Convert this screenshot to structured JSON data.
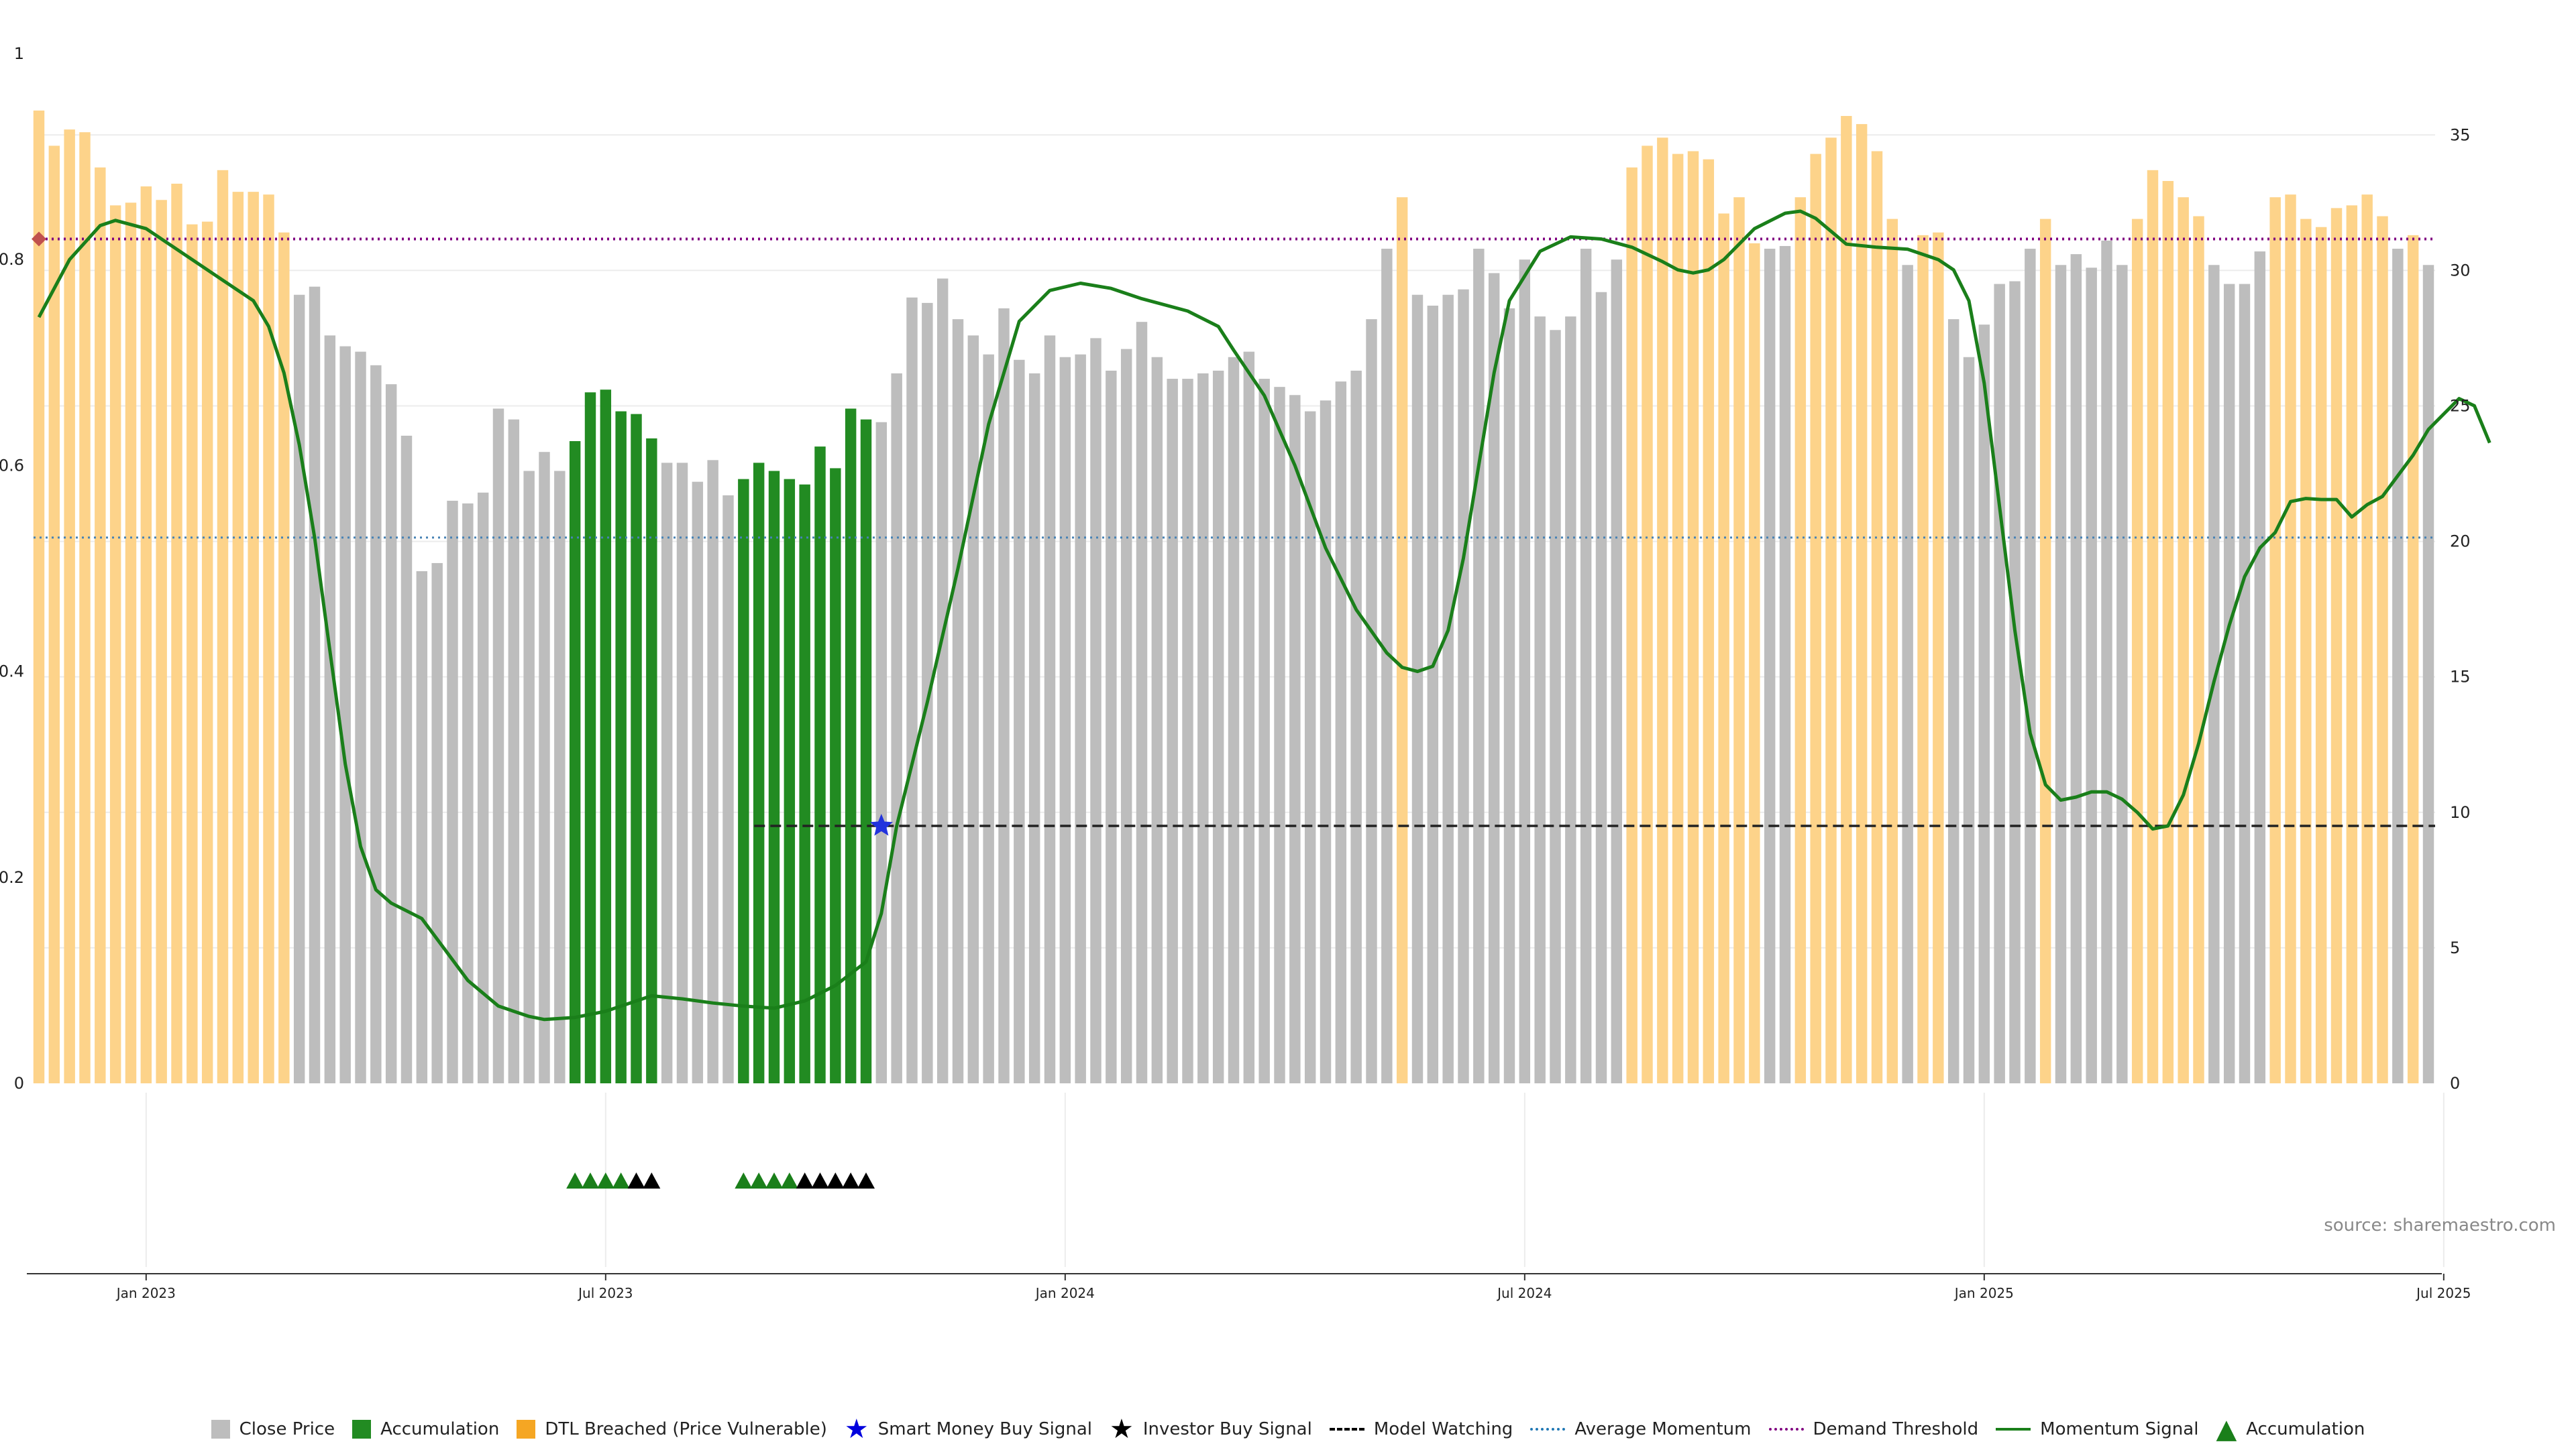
{
  "chart_data": {
    "type": "bar",
    "title": "",
    "left_axis": {
      "ylim": [
        0,
        1
      ],
      "ticks": [
        "0",
        "0.2",
        "0.4",
        "0.6",
        "0.8",
        "1"
      ]
    },
    "right_axis": {
      "ylim": [
        0,
        38
      ],
      "ticks": [
        "0",
        "5",
        "10",
        "15",
        "20",
        "25",
        "30",
        "35"
      ]
    },
    "x_ticks": [
      "Jan 2023",
      "Jul 2023",
      "Jan 2024",
      "Jul 2024",
      "Jan 2025",
      "Jul 2025"
    ],
    "demand_threshold": 0.82,
    "average_momentum": 0.53,
    "model_watching": 0.25,
    "smart_money_buy_signal": {
      "index": 55,
      "value": 0.25
    },
    "marker_start": {
      "value": 0.82
    },
    "categories_legend": {
      "g": "Close Price",
      "a": "Accumulation",
      "o": "DTL Breached (Price Vulnerable)"
    },
    "bars": [
      {
        "v": 35.9,
        "c": "o"
      },
      {
        "v": 34.6,
        "c": "o"
      },
      {
        "v": 35.2,
        "c": "o"
      },
      {
        "v": 35.1,
        "c": "o"
      },
      {
        "v": 33.8,
        "c": "o"
      },
      {
        "v": 32.4,
        "c": "o"
      },
      {
        "v": 32.5,
        "c": "o"
      },
      {
        "v": 33.1,
        "c": "o"
      },
      {
        "v": 32.6,
        "c": "o"
      },
      {
        "v": 33.2,
        "c": "o"
      },
      {
        "v": 31.7,
        "c": "o"
      },
      {
        "v": 31.8,
        "c": "o"
      },
      {
        "v": 33.7,
        "c": "o"
      },
      {
        "v": 32.9,
        "c": "o"
      },
      {
        "v": 32.9,
        "c": "o"
      },
      {
        "v": 32.8,
        "c": "o"
      },
      {
        "v": 31.4,
        "c": "o"
      },
      {
        "v": 29.1,
        "c": "g"
      },
      {
        "v": 29.4,
        "c": "g"
      },
      {
        "v": 27.6,
        "c": "g"
      },
      {
        "v": 27.2,
        "c": "g"
      },
      {
        "v": 27.0,
        "c": "g"
      },
      {
        "v": 26.5,
        "c": "g"
      },
      {
        "v": 25.8,
        "c": "g"
      },
      {
        "v": 23.9,
        "c": "g"
      },
      {
        "v": 18.9,
        "c": "g"
      },
      {
        "v": 19.2,
        "c": "g"
      },
      {
        "v": 21.5,
        "c": "g"
      },
      {
        "v": 21.4,
        "c": "g"
      },
      {
        "v": 21.8,
        "c": "g"
      },
      {
        "v": 24.9,
        "c": "g"
      },
      {
        "v": 24.5,
        "c": "g"
      },
      {
        "v": 22.6,
        "c": "g"
      },
      {
        "v": 23.3,
        "c": "g"
      },
      {
        "v": 22.6,
        "c": "g"
      },
      {
        "v": 23.7,
        "c": "a"
      },
      {
        "v": 25.5,
        "c": "a"
      },
      {
        "v": 25.6,
        "c": "a"
      },
      {
        "v": 24.8,
        "c": "a"
      },
      {
        "v": 24.7,
        "c": "a"
      },
      {
        "v": 23.8,
        "c": "a"
      },
      {
        "v": 22.9,
        "c": "g"
      },
      {
        "v": 22.9,
        "c": "g"
      },
      {
        "v": 22.2,
        "c": "g"
      },
      {
        "v": 23.0,
        "c": "g"
      },
      {
        "v": 21.7,
        "c": "g"
      },
      {
        "v": 22.3,
        "c": "a"
      },
      {
        "v": 22.9,
        "c": "a"
      },
      {
        "v": 22.6,
        "c": "a"
      },
      {
        "v": 22.3,
        "c": "a"
      },
      {
        "v": 22.1,
        "c": "a"
      },
      {
        "v": 23.5,
        "c": "a"
      },
      {
        "v": 22.7,
        "c": "a"
      },
      {
        "v": 24.9,
        "c": "a"
      },
      {
        "v": 24.5,
        "c": "a"
      },
      {
        "v": 24.4,
        "c": "g"
      },
      {
        "v": 26.2,
        "c": "g"
      },
      {
        "v": 29.0,
        "c": "g"
      },
      {
        "v": 28.8,
        "c": "g"
      },
      {
        "v": 29.7,
        "c": "g"
      },
      {
        "v": 28.2,
        "c": "g"
      },
      {
        "v": 27.6,
        "c": "g"
      },
      {
        "v": 26.9,
        "c": "g"
      },
      {
        "v": 28.6,
        "c": "g"
      },
      {
        "v": 26.7,
        "c": "g"
      },
      {
        "v": 26.2,
        "c": "g"
      },
      {
        "v": 27.6,
        "c": "g"
      },
      {
        "v": 26.8,
        "c": "g"
      },
      {
        "v": 26.9,
        "c": "g"
      },
      {
        "v": 27.5,
        "c": "g"
      },
      {
        "v": 26.3,
        "c": "g"
      },
      {
        "v": 27.1,
        "c": "g"
      },
      {
        "v": 28.1,
        "c": "g"
      },
      {
        "v": 26.8,
        "c": "g"
      },
      {
        "v": 26.0,
        "c": "g"
      },
      {
        "v": 26.0,
        "c": "g"
      },
      {
        "v": 26.2,
        "c": "g"
      },
      {
        "v": 26.3,
        "c": "g"
      },
      {
        "v": 26.8,
        "c": "g"
      },
      {
        "v": 27.0,
        "c": "g"
      },
      {
        "v": 26.0,
        "c": "g"
      },
      {
        "v": 25.7,
        "c": "g"
      },
      {
        "v": 25.4,
        "c": "g"
      },
      {
        "v": 24.8,
        "c": "g"
      },
      {
        "v": 25.2,
        "c": "g"
      },
      {
        "v": 25.9,
        "c": "g"
      },
      {
        "v": 26.3,
        "c": "g"
      },
      {
        "v": 28.2,
        "c": "g"
      },
      {
        "v": 30.8,
        "c": "g"
      },
      {
        "v": 32.7,
        "c": "o"
      },
      {
        "v": 29.1,
        "c": "g"
      },
      {
        "v": 28.7,
        "c": "g"
      },
      {
        "v": 29.1,
        "c": "g"
      },
      {
        "v": 29.3,
        "c": "g"
      },
      {
        "v": 30.8,
        "c": "g"
      },
      {
        "v": 29.9,
        "c": "g"
      },
      {
        "v": 28.6,
        "c": "g"
      },
      {
        "v": 30.4,
        "c": "g"
      },
      {
        "v": 28.3,
        "c": "g"
      },
      {
        "v": 27.8,
        "c": "g"
      },
      {
        "v": 28.3,
        "c": "g"
      },
      {
        "v": 30.8,
        "c": "g"
      },
      {
        "v": 29.2,
        "c": "g"
      },
      {
        "v": 30.4,
        "c": "g"
      },
      {
        "v": 33.8,
        "c": "o"
      },
      {
        "v": 34.6,
        "c": "o"
      },
      {
        "v": 34.9,
        "c": "o"
      },
      {
        "v": 34.3,
        "c": "o"
      },
      {
        "v": 34.4,
        "c": "o"
      },
      {
        "v": 34.1,
        "c": "o"
      },
      {
        "v": 32.1,
        "c": "o"
      },
      {
        "v": 32.7,
        "c": "o"
      },
      {
        "v": 31.0,
        "c": "o"
      },
      {
        "v": 30.8,
        "c": "g"
      },
      {
        "v": 30.9,
        "c": "g"
      },
      {
        "v": 32.7,
        "c": "o"
      },
      {
        "v": 34.3,
        "c": "o"
      },
      {
        "v": 34.9,
        "c": "o"
      },
      {
        "v": 35.7,
        "c": "o"
      },
      {
        "v": 35.4,
        "c": "o"
      },
      {
        "v": 34.4,
        "c": "o"
      },
      {
        "v": 31.9,
        "c": "o"
      },
      {
        "v": 30.2,
        "c": "g"
      },
      {
        "v": 31.3,
        "c": "o"
      },
      {
        "v": 31.4,
        "c": "o"
      },
      {
        "v": 28.2,
        "c": "g"
      },
      {
        "v": 26.8,
        "c": "g"
      },
      {
        "v": 28.0,
        "c": "g"
      },
      {
        "v": 29.5,
        "c": "g"
      },
      {
        "v": 29.6,
        "c": "g"
      },
      {
        "v": 30.8,
        "c": "g"
      },
      {
        "v": 31.9,
        "c": "o"
      },
      {
        "v": 30.2,
        "c": "g"
      },
      {
        "v": 30.6,
        "c": "g"
      },
      {
        "v": 30.1,
        "c": "g"
      },
      {
        "v": 31.1,
        "c": "g"
      },
      {
        "v": 30.2,
        "c": "g"
      },
      {
        "v": 31.9,
        "c": "o"
      },
      {
        "v": 33.7,
        "c": "o"
      },
      {
        "v": 33.3,
        "c": "o"
      },
      {
        "v": 32.7,
        "c": "o"
      },
      {
        "v": 32.0,
        "c": "o"
      },
      {
        "v": 30.2,
        "c": "g"
      },
      {
        "v": 29.5,
        "c": "g"
      },
      {
        "v": 29.5,
        "c": "g"
      },
      {
        "v": 30.7,
        "c": "g"
      },
      {
        "v": 32.7,
        "c": "o"
      },
      {
        "v": 32.8,
        "c": "o"
      },
      {
        "v": 31.9,
        "c": "o"
      },
      {
        "v": 31.6,
        "c": "o"
      },
      {
        "v": 32.3,
        "c": "o"
      },
      {
        "v": 32.4,
        "c": "o"
      },
      {
        "v": 32.8,
        "c": "o"
      },
      {
        "v": 32.0,
        "c": "o"
      },
      {
        "v": 30.8,
        "c": "g"
      },
      {
        "v": 31.3,
        "c": "o"
      },
      {
        "v": 30.2,
        "c": "g"
      }
    ],
    "momentum_signal": [
      [
        0,
        0.744
      ],
      [
        2,
        0.8
      ],
      [
        4,
        0.833
      ],
      [
        5,
        0.838
      ],
      [
        7,
        0.83
      ],
      [
        9,
        0.81
      ],
      [
        12,
        0.78
      ],
      [
        14,
        0.76
      ],
      [
        15,
        0.735
      ],
      [
        16,
        0.69
      ],
      [
        17,
        0.62
      ],
      [
        18,
        0.53
      ],
      [
        19,
        0.42
      ],
      [
        20,
        0.31
      ],
      [
        21,
        0.23
      ],
      [
        22,
        0.188
      ],
      [
        23,
        0.175
      ],
      [
        25,
        0.16
      ],
      [
        26,
        0.14
      ],
      [
        28,
        0.1
      ],
      [
        30,
        0.075
      ],
      [
        32,
        0.065
      ],
      [
        33,
        0.062
      ],
      [
        35,
        0.064
      ],
      [
        37,
        0.07
      ],
      [
        39,
        0.08
      ],
      [
        40,
        0.085
      ],
      [
        42,
        0.082
      ],
      [
        44,
        0.078
      ],
      [
        46,
        0.075
      ],
      [
        48,
        0.073
      ],
      [
        50,
        0.08
      ],
      [
        52,
        0.095
      ],
      [
        54,
        0.118
      ],
      [
        55,
        0.165
      ],
      [
        56,
        0.25
      ],
      [
        58,
        0.37
      ],
      [
        60,
        0.5
      ],
      [
        62,
        0.64
      ],
      [
        64,
        0.74
      ],
      [
        66,
        0.77
      ],
      [
        68,
        0.777
      ],
      [
        70,
        0.772
      ],
      [
        72,
        0.762
      ],
      [
        75,
        0.75
      ],
      [
        77,
        0.735
      ],
      [
        78,
        0.712
      ],
      [
        80,
        0.668
      ],
      [
        82,
        0.6
      ],
      [
        84,
        0.52
      ],
      [
        86,
        0.46
      ],
      [
        88,
        0.418
      ],
      [
        89,
        0.404
      ],
      [
        90,
        0.4
      ],
      [
        91,
        0.405
      ],
      [
        92,
        0.44
      ],
      [
        93,
        0.51
      ],
      [
        94,
        0.6
      ],
      [
        95,
        0.69
      ],
      [
        96,
        0.76
      ],
      [
        98,
        0.808
      ],
      [
        100,
        0.822
      ],
      [
        102,
        0.82
      ],
      [
        104,
        0.812
      ],
      [
        106,
        0.798
      ],
      [
        107,
        0.79
      ],
      [
        108,
        0.787
      ],
      [
        109,
        0.79
      ],
      [
        110,
        0.8
      ],
      [
        112,
        0.83
      ],
      [
        114,
        0.845
      ],
      [
        115,
        0.847
      ],
      [
        116,
        0.84
      ],
      [
        118,
        0.815
      ],
      [
        120,
        0.812
      ],
      [
        122,
        0.81
      ],
      [
        124,
        0.8
      ],
      [
        125,
        0.79
      ],
      [
        126,
        0.76
      ],
      [
        127,
        0.68
      ],
      [
        128,
        0.56
      ],
      [
        129,
        0.44
      ],
      [
        130,
        0.34
      ],
      [
        131,
        0.29
      ],
      [
        132,
        0.275
      ],
      [
        133,
        0.278
      ],
      [
        134,
        0.283
      ],
      [
        135,
        0.283
      ],
      [
        136,
        0.276
      ],
      [
        137,
        0.263
      ],
      [
        138,
        0.247
      ],
      [
        139,
        0.25
      ],
      [
        140,
        0.28
      ],
      [
        141,
        0.33
      ],
      [
        142,
        0.39
      ],
      [
        143,
        0.445
      ],
      [
        144,
        0.492
      ],
      [
        145,
        0.52
      ],
      [
        146,
        0.535
      ],
      [
        147,
        0.565
      ],
      [
        148,
        0.568
      ],
      [
        149,
        0.567
      ],
      [
        150,
        0.567
      ],
      [
        151,
        0.55
      ],
      [
        152,
        0.562
      ],
      [
        153,
        0.57
      ],
      [
        154,
        0.59
      ],
      [
        155,
        0.61
      ],
      [
        156,
        0.635
      ],
      [
        157,
        0.65
      ],
      [
        158,
        0.665
      ],
      [
        159,
        0.658
      ],
      [
        160,
        0.622
      ]
    ],
    "accumulation_markers": [
      {
        "i": 35,
        "c": "green"
      },
      {
        "i": 36,
        "c": "green"
      },
      {
        "i": 37,
        "c": "green"
      },
      {
        "i": 38,
        "c": "green"
      },
      {
        "i": 39,
        "c": "black"
      },
      {
        "i": 40,
        "c": "black"
      },
      {
        "i": 46,
        "c": "green"
      },
      {
        "i": 47,
        "c": "green"
      },
      {
        "i": 48,
        "c": "green"
      },
      {
        "i": 49,
        "c": "green"
      },
      {
        "i": 50,
        "c": "black"
      },
      {
        "i": 51,
        "c": "black"
      },
      {
        "i": 52,
        "c": "black"
      },
      {
        "i": 53,
        "c": "black"
      },
      {
        "i": 54,
        "c": "black"
      }
    ],
    "source": "source: sharemaestro.com",
    "legend": [
      {
        "label": "Close Price",
        "kind": "box",
        "color": "#bdbdbd"
      },
      {
        "label": "Accumulation",
        "kind": "box",
        "color": "#228b22"
      },
      {
        "label": "DTL Breached (Price Vulnerable)",
        "kind": "box",
        "color": "#f5a623"
      },
      {
        "label": "Smart Money Buy Signal",
        "kind": "glyph",
        "glyph": "★",
        "color": "#0000dd"
      },
      {
        "label": "Investor Buy Signal",
        "kind": "glyph",
        "glyph": "★",
        "color": "#000000"
      },
      {
        "label": "Model Watching",
        "kind": "line",
        "style": "dashed",
        "color": "#000000"
      },
      {
        "label": "Average Momentum",
        "kind": "line",
        "style": "dotted",
        "color": "#1f77b4"
      },
      {
        "label": "Demand Threshold",
        "kind": "line",
        "style": "dotted",
        "color": "#800080"
      },
      {
        "label": "Momentum Signal",
        "kind": "line",
        "style": "solid",
        "color": "#1a7f1a"
      },
      {
        "label": "Accumulation",
        "kind": "glyph",
        "glyph": "▲",
        "color": "#1a7f1a"
      }
    ],
    "colors": {
      "g": "#bdbdbd",
      "a": "#228b22",
      "o": "#fdd38a",
      "momentum": "#1a7f1a",
      "threshold": "#800080",
      "avg": "#4682b4",
      "watch": "#222222",
      "smart": "#2233dd",
      "diamond": "#c0504d"
    }
  }
}
